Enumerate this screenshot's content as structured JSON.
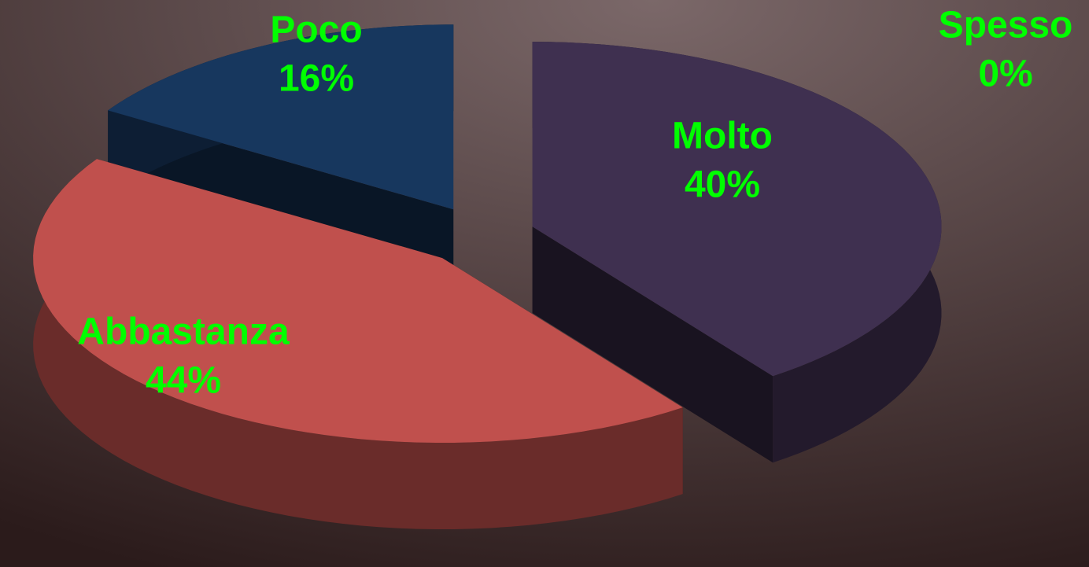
{
  "chart_data": {
    "type": "pie",
    "categories": [
      "Spesso",
      "Molto",
      "Abbastanza",
      "Poco"
    ],
    "values": [
      0,
      40,
      44,
      16
    ],
    "value_labels": [
      "0%",
      "40%",
      "44%",
      "16%"
    ],
    "colors": [
      "#4f81bd",
      "#3f3050",
      "#c0504d",
      "#17375e"
    ]
  }
}
